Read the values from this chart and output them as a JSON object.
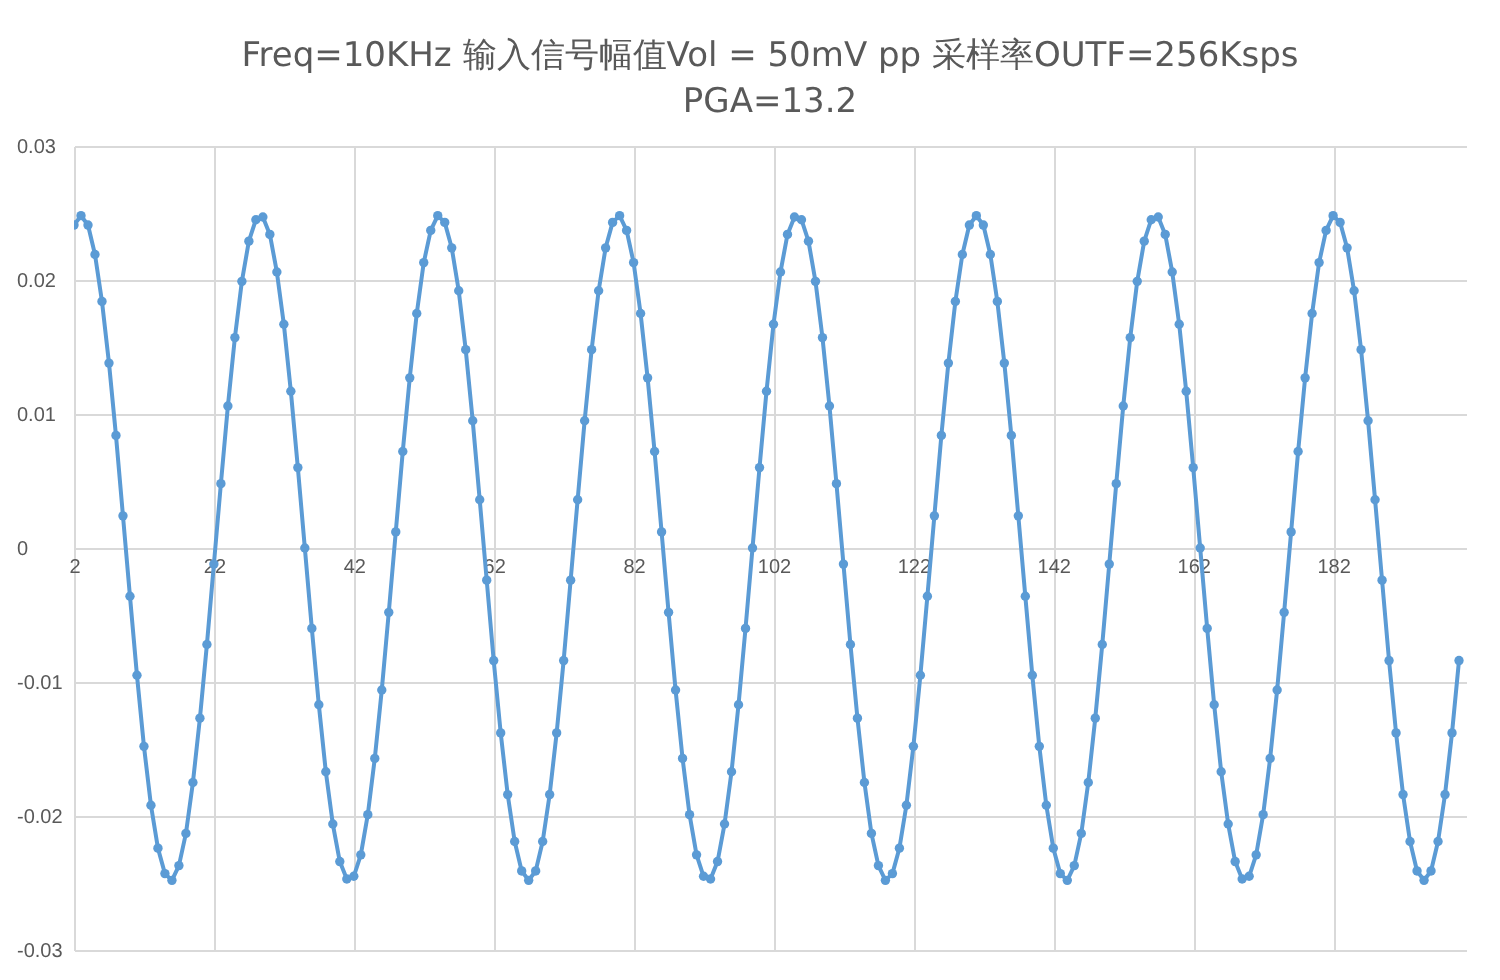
{
  "chart_data": {
    "type": "line",
    "title": "Freq=10KHz  输入信号幅值Vol = 50mV pp    采样率OUTF=256Ksps",
    "subtitle": "PGA=13.2",
    "x": [
      2,
      3,
      4,
      5,
      6,
      7,
      8,
      9,
      10,
      11,
      12,
      13,
      14,
      15,
      16,
      17,
      18,
      19,
      20,
      21,
      22,
      23,
      24,
      25,
      26,
      27,
      28,
      29,
      30,
      31,
      32,
      33,
      34,
      35,
      36,
      37,
      38,
      39,
      40,
      41,
      42,
      43,
      44,
      45,
      46,
      47,
      48,
      49,
      50,
      51,
      52,
      53,
      54,
      55,
      56,
      57,
      58,
      59,
      60,
      61,
      62,
      63,
      64,
      65,
      66,
      67,
      68,
      69,
      70,
      71,
      72,
      73,
      74,
      75,
      76,
      77,
      78,
      79,
      80,
      81,
      82,
      83,
      84,
      85,
      86,
      87,
      88,
      89,
      90,
      91,
      92,
      93,
      94,
      95,
      96,
      97,
      98,
      99,
      100,
      101,
      102,
      103,
      104,
      105,
      106,
      107,
      108,
      109,
      110,
      111,
      112,
      113,
      114,
      115,
      116,
      117,
      118,
      119,
      120,
      121,
      122,
      123,
      124,
      125,
      126,
      127,
      128,
      129,
      130,
      131,
      132,
      133,
      134,
      135,
      136,
      137,
      138,
      139,
      140,
      141,
      142,
      143,
      144,
      145,
      146,
      147,
      148,
      149,
      150,
      151,
      152,
      153,
      154,
      155,
      156,
      157,
      158,
      159,
      160,
      161,
      162,
      163,
      164,
      165,
      166,
      167,
      168,
      169,
      170,
      171,
      172,
      173,
      174,
      175,
      176,
      177,
      178,
      179,
      180,
      181,
      182,
      183,
      184,
      185,
      186,
      187,
      188,
      189,
      190,
      191,
      192,
      193,
      194,
      195,
      196,
      197,
      198,
      199,
      200
    ],
    "series": [
      {
        "color": "#5b9bd5",
        "values": [
          0.0241,
          0.0248,
          0.0241,
          0.0219,
          0.0184,
          0.0138,
          0.0084,
          0.0024,
          -0.0036,
          -0.0095,
          -0.0148,
          -0.0192,
          -0.0224,
          -0.0243,
          -0.0248,
          -0.0237,
          -0.0213,
          -0.0175,
          -0.0127,
          -0.0072,
          -0.0012,
          0.0048,
          0.0106,
          0.0157,
          0.0199,
          0.0229,
          0.0245,
          0.0247,
          0.0234,
          0.0206,
          0.0167,
          0.0117,
          0.006,
          0,
          -0.006,
          -0.0117,
          -0.0167,
          -0.0206,
          -0.0234,
          -0.0247,
          -0.0245,
          -0.0229,
          -0.0199,
          -0.0157,
          -0.0106,
          -0.0048,
          0.0012,
          0.0072,
          0.0127,
          0.0175,
          0.0213,
          0.0237,
          0.0248,
          0.0243,
          0.0224,
          0.0192,
          0.0148,
          0.0095,
          0.0036,
          -0.0024,
          -0.0084,
          -0.0138,
          -0.0184,
          -0.0219,
          -0.0241,
          -0.0248,
          -0.0241,
          -0.0219,
          -0.0184,
          -0.0138,
          -0.0084,
          -0.0024,
          0.0036,
          0.0095,
          0.0148,
          0.0192,
          0.0224,
          0.0243,
          0.0248,
          0.0237,
          0.0213,
          0.0175,
          0.0127,
          0.0072,
          0.0012,
          -0.0048,
          -0.0106,
          -0.0157,
          -0.0199,
          -0.0229,
          -0.0245,
          -0.0247,
          -0.0234,
          -0.0206,
          -0.0167,
          -0.0117,
          -0.006,
          0,
          0.006,
          0.0117,
          0.0167,
          0.0206,
          0.0234,
          0.0247,
          0.0245,
          0.0229,
          0.0199,
          0.0157,
          0.0106,
          0.0048,
          -0.0012,
          -0.0072,
          -0.0127,
          -0.0175,
          -0.0213,
          -0.0237,
          -0.0248,
          -0.0243,
          -0.0224,
          -0.0192,
          -0.0148,
          -0.0095,
          -0.0036,
          0.0024,
          0.0084,
          0.0138,
          0.0184,
          0.0219,
          0.0241,
          0.0248,
          0.0241,
          0.0219,
          0.0184,
          0.0138,
          0.0084,
          0.0024,
          -0.0036,
          -0.0095,
          -0.0148,
          -0.0192,
          -0.0224,
          -0.0243,
          -0.0248,
          -0.0237,
          -0.0213,
          -0.0175,
          -0.0127,
          -0.0072,
          -0.0012,
          0.0048,
          0.0106,
          0.0157,
          0.0199,
          0.0229,
          0.0245,
          0.0247,
          0.0234,
          0.0206,
          0.0167,
          0.0117,
          0.006,
          0,
          -0.006,
          -0.0117,
          -0.0167,
          -0.0206,
          -0.0234,
          -0.0247,
          -0.0245,
          -0.0229,
          -0.0199,
          -0.0157,
          -0.0106,
          -0.0048,
          0.0012,
          0.0072,
          0.0127,
          0.0175,
          0.0213,
          0.0237,
          0.0248,
          0.0243,
          0.0224,
          0.0192,
          0.0148,
          0.0095,
          0.0036,
          -0.0024,
          -0.0084,
          -0.0138,
          -0.0184,
          -0.0219,
          -0.0241,
          -0.0248,
          -0.0241,
          -0.0219,
          -0.0184,
          -0.0138,
          -0.0084
        ]
      }
    ],
    "xlim": [
      2,
      201
    ],
    "xticks": [
      2,
      22,
      42,
      62,
      82,
      102,
      122,
      142,
      162,
      182
    ],
    "ylim": [
      -0.03,
      0.03
    ],
    "yticks": [
      -0.03,
      -0.02,
      -0.01,
      0,
      0.01,
      0.02,
      0.03
    ],
    "grid": true,
    "marker": "circle",
    "line_style": "solid"
  }
}
